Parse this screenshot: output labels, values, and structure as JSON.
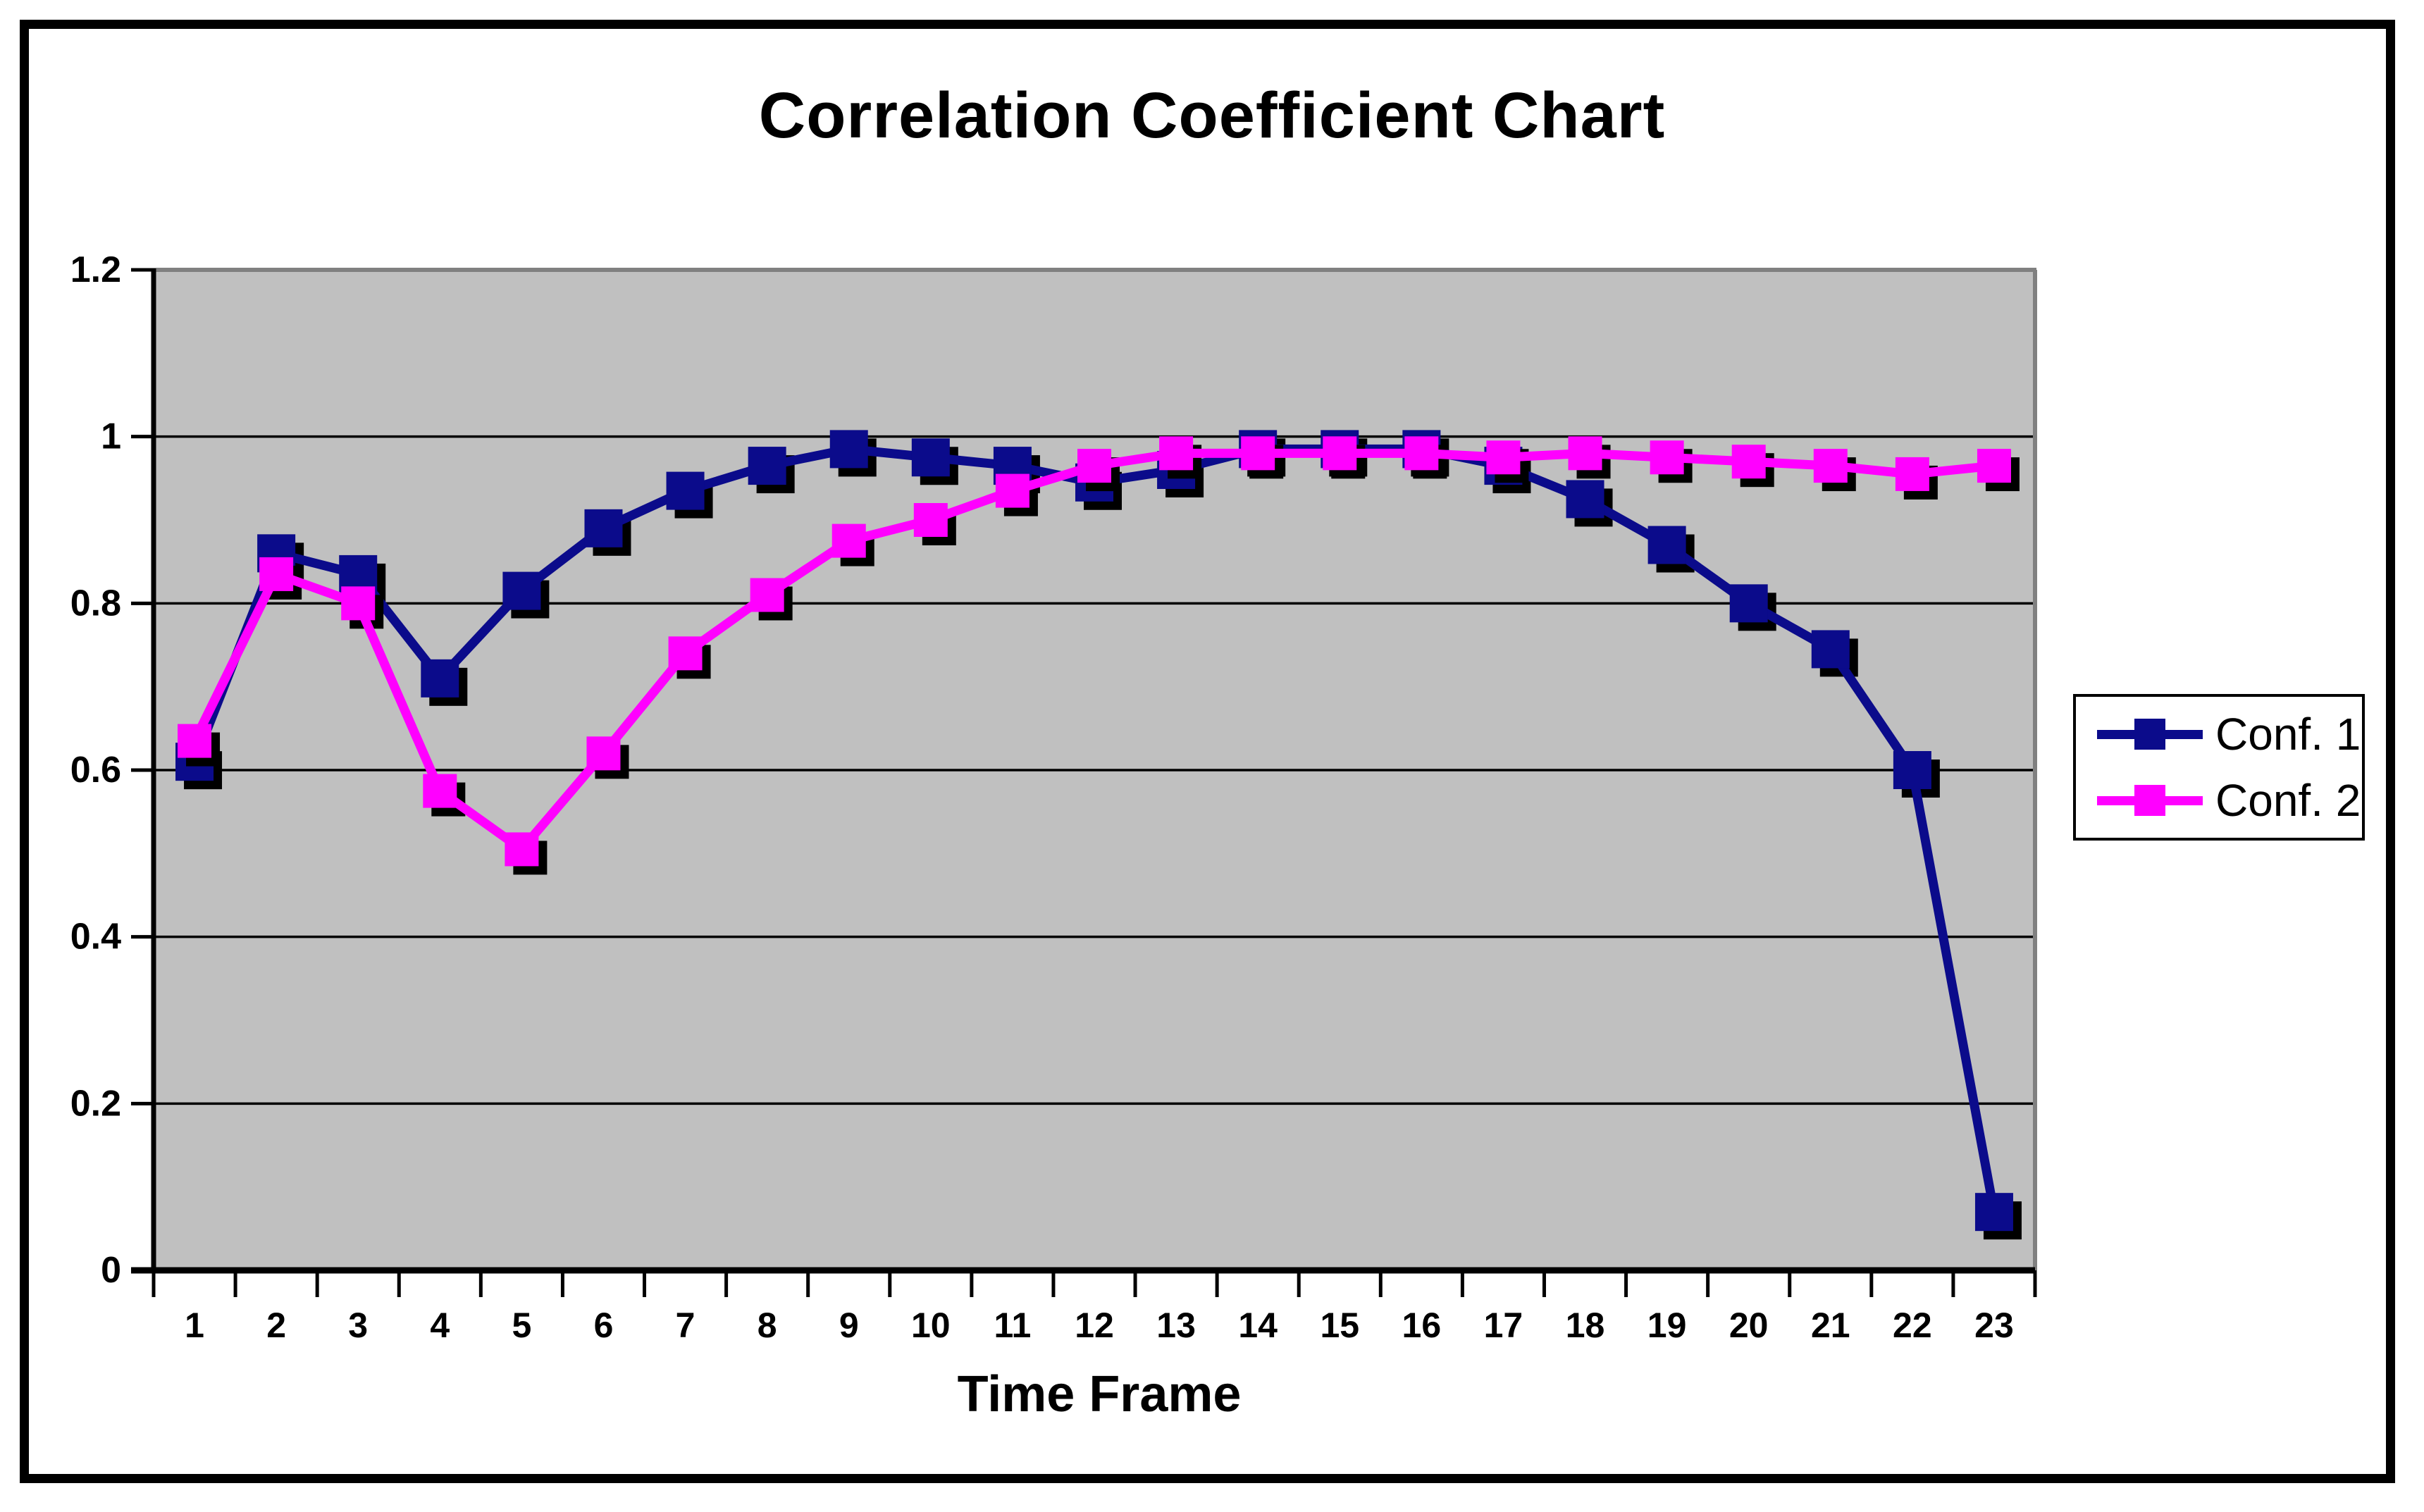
{
  "chart_data": {
    "type": "line",
    "title": "Correlation Coefficient Chart",
    "xlabel": "Time Frame",
    "ylabel": "",
    "categories": [
      "1",
      "2",
      "3",
      "4",
      "5",
      "6",
      "7",
      "8",
      "9",
      "10",
      "11",
      "12",
      "13",
      "14",
      "15",
      "16",
      "17",
      "18",
      "19",
      "20",
      "21",
      "22",
      "23"
    ],
    "ylim": [
      0,
      1.2
    ],
    "y_ticks": [
      {
        "label": "1.2",
        "value": 1.2
      },
      {
        "label": "1",
        "value": 1.0
      },
      {
        "label": "0.8",
        "value": 0.8
      },
      {
        "label": "0.6",
        "value": 0.6
      },
      {
        "label": "0.4",
        "value": 0.4
      },
      {
        "label": "0.2",
        "value": 0.2
      },
      {
        "label": "0",
        "value": 0.0
      }
    ],
    "grid": true,
    "legend_position": "right",
    "plot_background": "#c0c0c0",
    "plot_border_color": "#808080",
    "gridline_color": "#000000",
    "series": [
      {
        "name": "Conf. 1",
        "color": "#0b0b8b",
        "marker": "square",
        "values": [
          0.61,
          0.86,
          0.835,
          0.71,
          0.815,
          0.89,
          0.935,
          0.965,
          0.985,
          0.975,
          0.965,
          0.945,
          0.96,
          0.985,
          0.985,
          0.985,
          0.965,
          0.925,
          0.87,
          0.8,
          0.745,
          0.6,
          0.07
        ]
      },
      {
        "name": "Conf. 2",
        "color": "#ff00ff",
        "marker": "square",
        "values": [
          0.635,
          0.835,
          0.8,
          0.575,
          0.505,
          0.62,
          0.74,
          0.81,
          0.875,
          0.9,
          0.935,
          0.965,
          0.98,
          0.98,
          0.98,
          0.98,
          0.975,
          0.98,
          0.975,
          0.97,
          0.965,
          0.955,
          0.965
        ]
      }
    ]
  }
}
